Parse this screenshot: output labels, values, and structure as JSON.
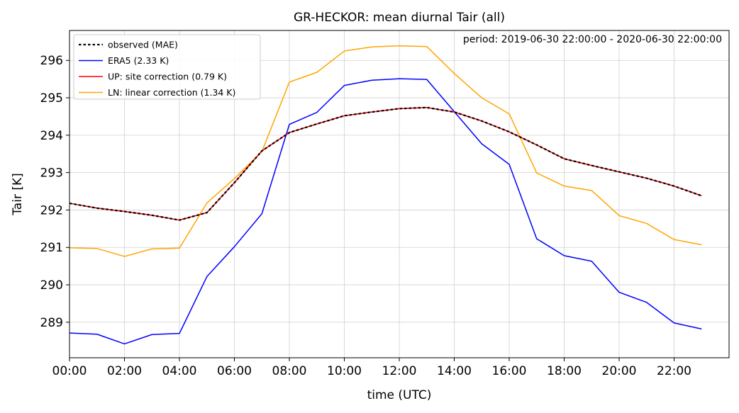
{
  "chart_data": {
    "type": "line",
    "title": "GR-HECKOR: mean diurnal Tair (all)",
    "xlabel": "time (UTC)",
    "ylabel": "Tair [K]",
    "annotation": "period: 2019-06-30 22:00:00 - 2020-06-30 22:00:00",
    "xlim": [
      0,
      24
    ],
    "ylim": [
      288.05,
      296.8
    ],
    "grid": true,
    "legend_position": "top-left",
    "x_ticks": [
      0,
      2,
      4,
      6,
      8,
      10,
      12,
      14,
      16,
      18,
      20,
      22
    ],
    "x_tick_labels": [
      "00:00",
      "02:00",
      "04:00",
      "06:00",
      "08:00",
      "10:00",
      "12:00",
      "14:00",
      "16:00",
      "18:00",
      "20:00",
      "22:00"
    ],
    "y_ticks": [
      289,
      290,
      291,
      292,
      293,
      294,
      295,
      296
    ],
    "y_tick_labels": [
      "289",
      "290",
      "291",
      "292",
      "293",
      "294",
      "295",
      "296"
    ],
    "x": [
      0,
      1,
      2,
      3,
      4,
      5,
      6,
      7,
      8,
      9,
      10,
      11,
      12,
      13,
      14,
      15,
      16,
      17,
      18,
      19,
      20,
      21,
      22,
      23
    ],
    "series": [
      {
        "name": "ERA5 (2.33 K)",
        "color": "#0000ff",
        "style": "solid",
        "values": [
          288.71,
          288.68,
          288.42,
          288.67,
          288.7,
          290.22,
          291.02,
          291.9,
          294.29,
          294.61,
          295.33,
          295.47,
          295.51,
          295.49,
          294.63,
          293.77,
          293.22,
          291.23,
          290.78,
          290.63,
          289.8,
          289.53,
          288.98,
          288.82
        ]
      },
      {
        "name": "LN: linear correction (1.34 K)",
        "color": "#ffa500",
        "style": "solid",
        "values": [
          290.99,
          290.97,
          290.76,
          290.96,
          290.98,
          292.19,
          292.84,
          293.56,
          295.42,
          295.68,
          296.25,
          296.36,
          296.39,
          296.37,
          295.65,
          295.0,
          294.57,
          292.99,
          292.64,
          292.52,
          291.85,
          291.64,
          291.21,
          291.07
        ]
      },
      {
        "name": "UP: site correction (0.79 K)",
        "color": "#ff0000",
        "style": "solid",
        "values": [
          292.18,
          292.05,
          291.96,
          291.86,
          291.73,
          291.93,
          292.73,
          293.58,
          294.07,
          294.3,
          294.52,
          294.62,
          294.71,
          294.74,
          294.62,
          294.38,
          294.09,
          293.74,
          293.37,
          293.19,
          293.02,
          292.85,
          292.64,
          292.38
        ]
      },
      {
        "name": "observed (MAE)",
        "color": "#000000",
        "style": "dotted",
        "values": [
          292.18,
          292.05,
          291.96,
          291.86,
          291.73,
          291.93,
          292.73,
          293.58,
          294.07,
          294.3,
          294.52,
          294.62,
          294.71,
          294.74,
          294.62,
          294.38,
          294.09,
          293.74,
          293.37,
          293.19,
          293.02,
          292.85,
          292.64,
          292.38
        ]
      }
    ],
    "legend_order": [
      "observed (MAE)",
      "ERA5 (2.33 K)",
      "UP: site correction (0.79 K)",
      "LN: linear correction (1.34 K)"
    ]
  }
}
